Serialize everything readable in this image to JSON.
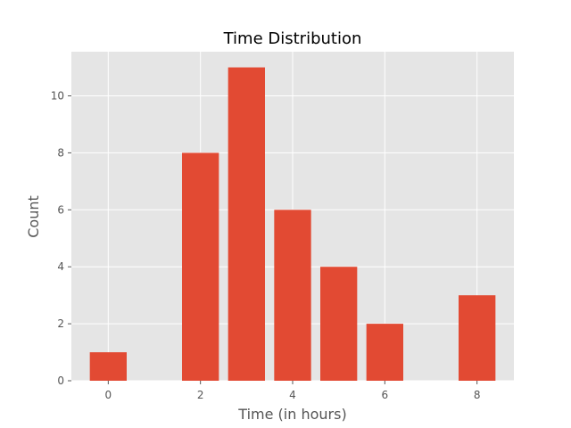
{
  "chart_data": {
    "type": "bar",
    "title": "Time Distribution",
    "xlabel": "Time (in hours)",
    "ylabel": "Count",
    "x": [
      0,
      2,
      3,
      4,
      5,
      6,
      8
    ],
    "values": [
      1,
      8,
      11,
      6,
      4,
      2,
      3
    ],
    "xlim": [
      -0.8,
      8.8
    ],
    "ylim": [
      0,
      11.55
    ],
    "xticks": [
      0,
      2,
      4,
      6,
      8
    ],
    "yticks": [
      0,
      2,
      4,
      6,
      8,
      10
    ],
    "grid": true,
    "colors": {
      "bar": "#E24A33",
      "plot_background": "#E5E5E5",
      "grid": "#FFFFFF"
    }
  }
}
